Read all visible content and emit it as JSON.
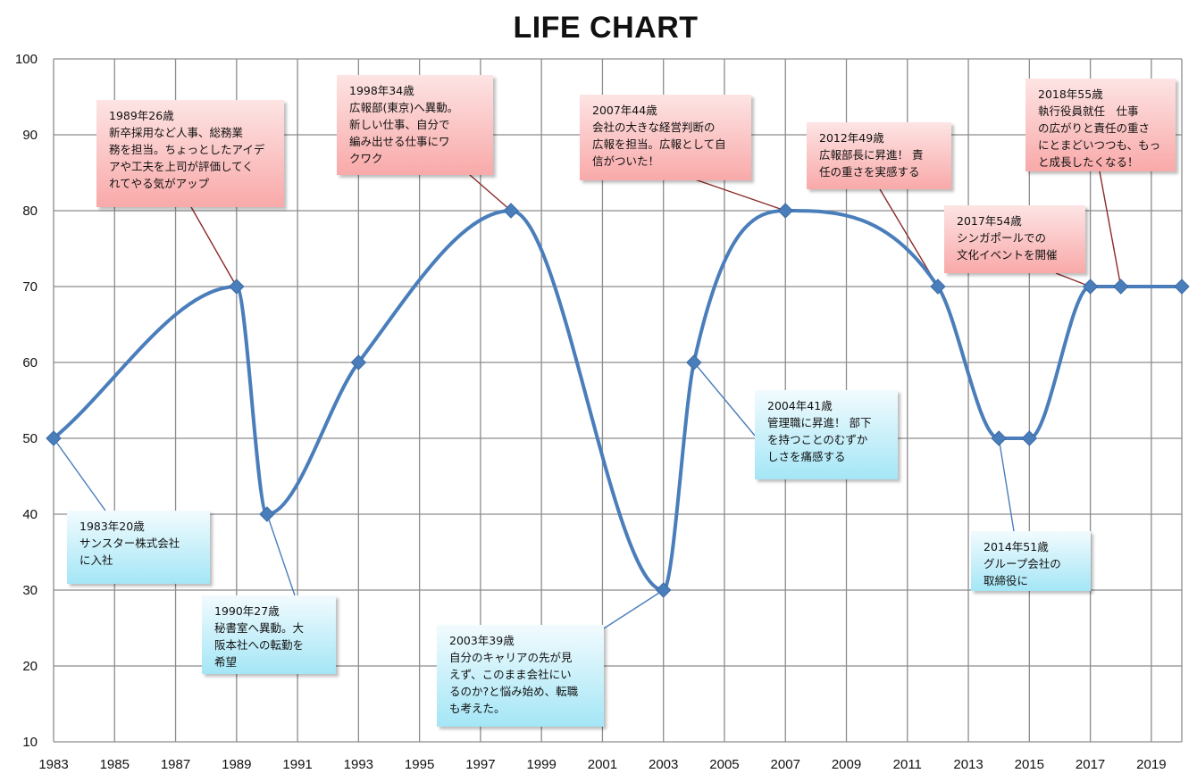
{
  "chart_data": {
    "type": "line",
    "title": "LIFE CHART",
    "x": [
      1983,
      1989,
      1990,
      1993,
      1998,
      2003,
      2004,
      2007,
      2012,
      2014,
      2015,
      2017,
      2018,
      2020
    ],
    "y": [
      50,
      70,
      40,
      60,
      80,
      30,
      60,
      80,
      70,
      50,
      50,
      70,
      70,
      70
    ],
    "xlim": [
      1983,
      2020
    ],
    "ylim": [
      10,
      100
    ],
    "xticks": [
      1983,
      1985,
      1987,
      1989,
      1991,
      1993,
      1995,
      1997,
      1999,
      2001,
      2003,
      2005,
      2007,
      2009,
      2011,
      2013,
      2015,
      2017,
      2019
    ],
    "yticks": [
      10,
      20,
      30,
      40,
      50,
      60,
      70,
      80,
      90,
      100
    ],
    "grid": true,
    "colors": {
      "line": "#4a7ebb",
      "leader_red": "#8b2a2a",
      "leader_blue": "#4a7ebb"
    },
    "annotations": [
      {
        "text": "1983年20歳\nサンスター株式会社\nに入社",
        "style": "blue",
        "x": 1983,
        "y": 50
      },
      {
        "text": "1989年26歳\n新卒採用など人事、総務業\n務を担当。ちょっとしたアイデ\nアや工夫を上司が評価してく\nれてやる気がアップ",
        "style": "red",
        "x": 1989,
        "y": 70
      },
      {
        "text": "1990年27歳\n秘書室へ異動。大\n阪本社への転勤を\n希望",
        "style": "blue",
        "x": 1990,
        "y": 40
      },
      {
        "text": "1998年34歳\n広報部(東京)へ異動。\n新しい仕事、自分で\n編み出せる仕事にワ\nクワク",
        "style": "red",
        "x": 1998,
        "y": 80
      },
      {
        "text": "2003年39歳\n自分のキャリアの先が見\nえず、このまま会社にい\nるのか?と悩み始め、転職\nも考えた。",
        "style": "blue",
        "x": 2003,
        "y": 30
      },
      {
        "text": "2004年41歳\n管理職に昇進！ 部下\nを持つことのむずか\nしさを痛感する",
        "style": "blue",
        "x": 2004,
        "y": 60
      },
      {
        "text": "2007年44歳\n会社の大きな経営判断の\n広報を担当。広報として自\n信がついた！",
        "style": "red",
        "x": 2007,
        "y": 80
      },
      {
        "text": "2012年49歳\n広報部長に昇進！ 責\n任の重さを実感する",
        "style": "red",
        "x": 2012,
        "y": 70
      },
      {
        "text": "2014年51歳\nグループ会社の\n取締役に",
        "style": "blue",
        "x": 2014,
        "y": 50
      },
      {
        "text": "2017年54歳\nシンガポールでの\n文化イベントを開催",
        "style": "red",
        "x": 2017,
        "y": 70
      },
      {
        "text": "2018年55歳\n執行役員就任　仕事\nの広がりと責任の重さ\nにとまどいつつも、もっ\nと成長したくなる！",
        "style": "red",
        "x": 2018,
        "y": 70
      }
    ]
  }
}
